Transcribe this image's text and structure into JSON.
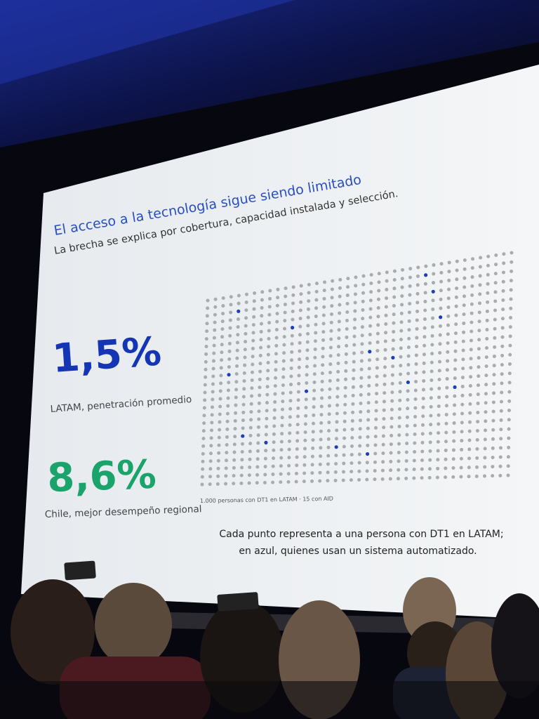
{
  "slide": {
    "title": "El acceso a la tecnología sigue siendo limitado",
    "subtitle": "La brecha se explica por cobertura, capacidad instalada y selección.",
    "stats": [
      {
        "value": "1,5%",
        "label": "LATAM, penetración promedio"
      },
      {
        "value": "8,6%",
        "label": "Chile, mejor desempeño regional"
      }
    ],
    "dot_caption": "1.000 personas con DT1 en LATAM · 15 con AID",
    "note": [
      "Cada punto representa a una persona con DT1 en LATAM;",
      "en azul, quienes usan un sistema automatizado."
    ]
  }
}
